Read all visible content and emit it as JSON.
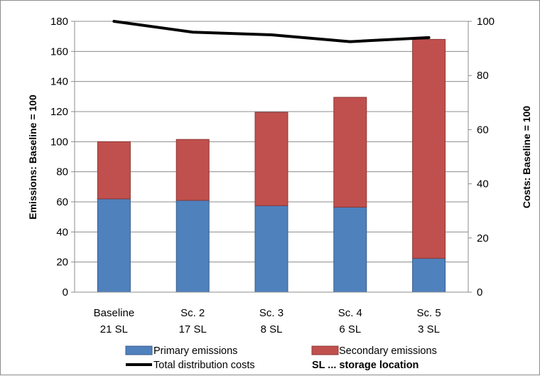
{
  "chart_data": {
    "type": "bar",
    "stacked": true,
    "categories": [
      {
        "name": "Baseline",
        "sub": "21 SL"
      },
      {
        "name": "Sc. 2",
        "sub": "17 SL"
      },
      {
        "name": "Sc. 3",
        "sub": "8 SL"
      },
      {
        "name": "Sc. 4",
        "sub": "6 SL"
      },
      {
        "name": "Sc. 5",
        "sub": "3 SL"
      }
    ],
    "series": [
      {
        "name": "Primary emissions",
        "axis": "left",
        "kind": "bar",
        "color": "#4f81bd",
        "values": [
          62,
          61,
          57.5,
          56.5,
          22.5
        ]
      },
      {
        "name": "Secondary emissions",
        "axis": "left",
        "kind": "bar",
        "color": "#c0504d",
        "values": [
          38,
          40.5,
          62,
          73,
          145.5
        ]
      },
      {
        "name": "Total distribution costs",
        "axis": "right",
        "kind": "line",
        "color": "#000000",
        "values": [
          100,
          96,
          95,
          92.5,
          94
        ]
      }
    ],
    "ylabel": "Emissions: Baseline = 100",
    "y2label": "Costs: Baseline = 100",
    "ylim": [
      0,
      180
    ],
    "yticks": [
      0,
      20,
      40,
      60,
      80,
      100,
      120,
      140,
      160,
      180
    ],
    "y2lim": [
      0,
      100
    ],
    "y2ticks": [
      0,
      20,
      40,
      60,
      80,
      100
    ],
    "grid": true,
    "legend_position": "bottom",
    "note": "SL ... storage location"
  }
}
